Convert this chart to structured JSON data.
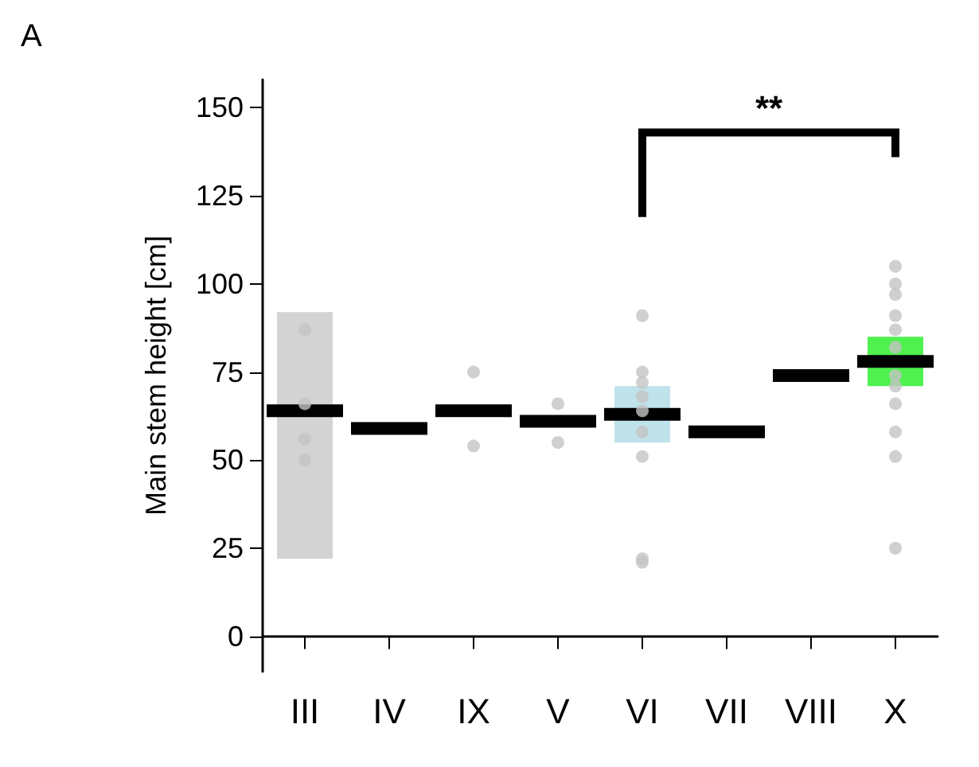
{
  "chart_data": {
    "type": "bar",
    "title": "A",
    "ylabel": "Main stem height [cm]",
    "categories": [
      "III",
      "IV",
      "IX",
      "V",
      "VI",
      "VII",
      "VIII",
      "X"
    ],
    "ylim": [
      -10,
      158
    ],
    "yticks": [
      0,
      25,
      50,
      75,
      100,
      125,
      150
    ],
    "grid": false,
    "annotations": [
      "**"
    ],
    "series": [
      {
        "base": [
          22,
          null,
          null,
          null,
          55,
          null,
          null,
          71
        ],
        "values": [
          70,
          null,
          null,
          null,
          16,
          null,
          null,
          14
        ],
        "colors": [
          "#c8c8c8",
          null,
          null,
          null,
          "#b0dbe6",
          null,
          null,
          "#22ee22"
        ]
      },
      {
        "type": "scatter",
        "marker": "circle",
        "color": "#c4c4c4",
        "x": [
          "III",
          "III",
          "III",
          "III",
          "IX",
          "IX",
          "V",
          "V",
          "VI",
          "VI",
          "VI",
          "VI",
          "VI",
          "VI",
          "VI",
          "VI",
          "VI",
          "X",
          "X",
          "X",
          "X",
          "X",
          "X",
          "X",
          "X",
          "X",
          "X",
          "X",
          "X"
        ],
        "values": [
          87,
          66,
          56,
          50,
          75,
          54,
          66,
          55,
          91,
          75,
          72,
          68,
          64,
          58,
          51,
          22,
          21,
          105,
          100,
          97,
          91,
          87,
          82,
          74,
          71,
          66,
          58,
          51,
          25
        ]
      },
      {
        "type": "box",
        "color": "#000000",
        "boxes": [
          {
            "low": 64,
            "q1": 64,
            "median": 64,
            "q3": 64,
            "high": 64
          },
          {
            "low": 59,
            "q1": 59,
            "median": 59,
            "q3": 59,
            "high": 59
          },
          {
            "low": 64,
            "q1": 64,
            "median": 64,
            "q3": 64,
            "high": 64
          },
          {
            "low": 61,
            "q1": 61,
            "median": 61,
            "q3": 61,
            "high": 61
          },
          {
            "low": 63,
            "q1": 63,
            "median": 63,
            "q3": 63,
            "high": 63
          },
          {
            "low": 58,
            "q1": 58,
            "median": 58,
            "q3": 58,
            "high": 58
          },
          {
            "low": 74,
            "q1": 74,
            "median": 74,
            "q3": 74,
            "high": 74
          },
          {
            "low": 78,
            "q1": 78,
            "median": 78,
            "q3": 78,
            "high": 78
          }
        ]
      }
    ]
  }
}
